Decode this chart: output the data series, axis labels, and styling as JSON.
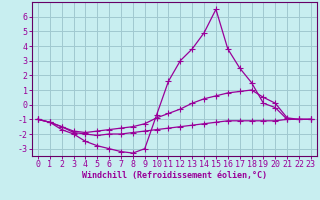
{
  "background_color": "#c8eef0",
  "grid_color": "#a0c8d0",
  "line_color": "#990099",
  "spine_color": "#660066",
  "marker": "+",
  "marker_size": 4,
  "marker_lw": 0.8,
  "line_width": 0.9,
  "xlabel": "Windchill (Refroidissement éolien,°C)",
  "xlabel_fontsize": 6.0,
  "tick_fontsize": 6.0,
  "xlim": [
    -0.5,
    23.5
  ],
  "ylim": [
    -3.5,
    7.0
  ],
  "yticks": [
    -3,
    -2,
    -1,
    0,
    1,
    2,
    3,
    4,
    5,
    6
  ],
  "xticks": [
    0,
    1,
    2,
    3,
    4,
    5,
    6,
    7,
    8,
    9,
    10,
    11,
    12,
    13,
    14,
    15,
    16,
    17,
    18,
    19,
    20,
    21,
    22,
    23
  ],
  "series1": [
    [
      0,
      -1.0
    ],
    [
      1,
      -1.2
    ],
    [
      2,
      -1.7
    ],
    [
      3,
      -2.0
    ],
    [
      4,
      -2.5
    ],
    [
      5,
      -2.8
    ],
    [
      6,
      -3.0
    ],
    [
      7,
      -3.2
    ],
    [
      8,
      -3.3
    ],
    [
      9,
      -3.0
    ],
    [
      10,
      -0.7
    ],
    [
      11,
      1.6
    ],
    [
      12,
      3.0
    ],
    [
      13,
      3.8
    ],
    [
      14,
      4.9
    ],
    [
      15,
      6.5
    ],
    [
      16,
      3.8
    ],
    [
      17,
      2.5
    ],
    [
      18,
      1.5
    ],
    [
      19,
      0.1
    ],
    [
      20,
      -0.2
    ],
    [
      21,
      -1.0
    ],
    [
      22,
      -1.0
    ],
    [
      23,
      -1.0
    ]
  ],
  "series2": [
    [
      0,
      -1.0
    ],
    [
      1,
      -1.2
    ],
    [
      2,
      -1.5
    ],
    [
      3,
      -1.8
    ],
    [
      4,
      -1.9
    ],
    [
      5,
      -1.8
    ],
    [
      6,
      -1.7
    ],
    [
      7,
      -1.6
    ],
    [
      8,
      -1.5
    ],
    [
      9,
      -1.3
    ],
    [
      10,
      -0.9
    ],
    [
      11,
      -0.6
    ],
    [
      12,
      -0.3
    ],
    [
      13,
      0.1
    ],
    [
      14,
      0.4
    ],
    [
      15,
      0.6
    ],
    [
      16,
      0.8
    ],
    [
      17,
      0.9
    ],
    [
      18,
      1.0
    ],
    [
      19,
      0.5
    ],
    [
      20,
      0.1
    ],
    [
      21,
      -0.9
    ],
    [
      22,
      -1.0
    ],
    [
      23,
      -1.0
    ]
  ],
  "series3": [
    [
      0,
      -1.0
    ],
    [
      1,
      -1.2
    ],
    [
      2,
      -1.5
    ],
    [
      3,
      -1.9
    ],
    [
      4,
      -2.0
    ],
    [
      5,
      -2.1
    ],
    [
      6,
      -2.0
    ],
    [
      7,
      -2.0
    ],
    [
      8,
      -1.9
    ],
    [
      9,
      -1.8
    ],
    [
      10,
      -1.7
    ],
    [
      11,
      -1.6
    ],
    [
      12,
      -1.5
    ],
    [
      13,
      -1.4
    ],
    [
      14,
      -1.3
    ],
    [
      15,
      -1.2
    ],
    [
      16,
      -1.1
    ],
    [
      17,
      -1.1
    ],
    [
      18,
      -1.1
    ],
    [
      19,
      -1.1
    ],
    [
      20,
      -1.1
    ],
    [
      21,
      -1.0
    ],
    [
      22,
      -1.0
    ],
    [
      23,
      -1.0
    ]
  ]
}
